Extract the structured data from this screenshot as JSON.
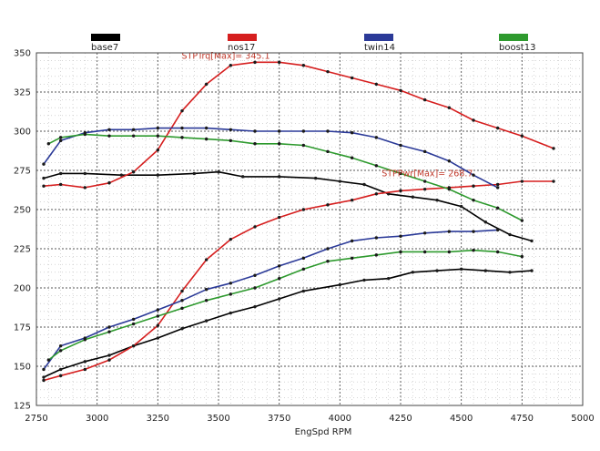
{
  "chart_data": {
    "type": "line",
    "title": "",
    "xlabel": "EngSpd RPM",
    "ylabel": "",
    "xlim": [
      2750,
      5000
    ],
    "ylim": [
      125,
      350
    ],
    "x_ticks": [
      "2750",
      "3000",
      "3250",
      "3500",
      "3750",
      "4000",
      "4250",
      "4500",
      "4750",
      "5000"
    ],
    "y_ticks": [
      "350",
      "325",
      "300",
      "275",
      "250",
      "225",
      "200",
      "175",
      "150",
      "125"
    ],
    "grid": true,
    "legend_position": "top",
    "legend": [
      {
        "name": "base7",
        "color": "#000000"
      },
      {
        "name": "nos17",
        "color": "#d61f1f"
      },
      {
        "name": "twin14",
        "color": "#2b3a98"
      },
      {
        "name": "boost13",
        "color": "#2e9a2e"
      }
    ],
    "series": [
      {
        "name": "base7",
        "color": "#000000",
        "kind": "torque",
        "x": [
          2780,
          2850,
          2950,
          3100,
          3250,
          3400,
          3500,
          3600,
          3750,
          3900,
          4000,
          4100,
          4200,
          4300,
          4400,
          4500,
          4600,
          4700,
          4790
        ],
        "y": [
          270,
          273,
          273,
          272,
          272,
          273,
          274,
          271,
          271,
          270,
          268,
          266,
          260,
          258,
          256,
          252,
          242,
          234,
          230
        ]
      },
      {
        "name": "base7",
        "color": "#000000",
        "kind": "power",
        "x": [
          2780,
          2850,
          2950,
          3050,
          3150,
          3250,
          3350,
          3450,
          3550,
          3650,
          3750,
          3850,
          4000,
          4100,
          4200,
          4300,
          4400,
          4500,
          4600,
          4700,
          4790
        ],
        "y": [
          143,
          148,
          153,
          157,
          163,
          168,
          174,
          179,
          184,
          188,
          193,
          198,
          202,
          205,
          206,
          210,
          211,
          212,
          211,
          210,
          211
        ]
      },
      {
        "name": "nos17",
        "color": "#d61f1f",
        "kind": "torque",
        "x": [
          2780,
          2850,
          2950,
          3050,
          3150,
          3250,
          3350,
          3450,
          3550,
          3650,
          3750,
          3850,
          3950,
          4050,
          4150,
          4250,
          4350,
          4450,
          4550,
          4650,
          4750,
          4880
        ],
        "y": [
          265,
          266,
          264,
          267,
          274,
          288,
          313,
          330,
          342,
          344,
          344,
          342,
          338,
          334,
          330,
          326,
          320,
          315,
          307,
          302,
          297,
          289
        ]
      },
      {
        "name": "nos17",
        "color": "#d61f1f",
        "kind": "power",
        "x": [
          2780,
          2850,
          2950,
          3050,
          3150,
          3250,
          3350,
          3450,
          3550,
          3650,
          3750,
          3850,
          3950,
          4050,
          4150,
          4250,
          4350,
          4450,
          4550,
          4650,
          4750,
          4880
        ],
        "y": [
          141,
          144,
          148,
          154,
          163,
          176,
          198,
          218,
          231,
          239,
          245,
          250,
          253,
          256,
          260,
          262,
          263,
          264,
          265,
          266,
          268,
          268
        ]
      },
      {
        "name": "twin14",
        "color": "#2b3a98",
        "kind": "torque",
        "x": [
          2780,
          2850,
          2950,
          3050,
          3150,
          3250,
          3350,
          3450,
          3550,
          3650,
          3750,
          3850,
          3950,
          4050,
          4150,
          4250,
          4350,
          4450,
          4550,
          4650
        ],
        "y": [
          279,
          294,
          299,
          301,
          301,
          302,
          302,
          302,
          301,
          300,
          300,
          300,
          300,
          299,
          296,
          291,
          287,
          281,
          272,
          264
        ]
      },
      {
        "name": "twin14",
        "color": "#2b3a98",
        "kind": "power",
        "x": [
          2780,
          2850,
          2950,
          3050,
          3150,
          3250,
          3350,
          3450,
          3550,
          3650,
          3750,
          3850,
          3950,
          4050,
          4150,
          4250,
          4350,
          4450,
          4550,
          4650
        ],
        "y": [
          148,
          163,
          168,
          175,
          180,
          186,
          192,
          199,
          203,
          208,
          214,
          219,
          225,
          230,
          232,
          233,
          235,
          236,
          236,
          237
        ]
      },
      {
        "name": "boost13",
        "color": "#2e9a2e",
        "kind": "torque",
        "x": [
          2800,
          2850,
          2950,
          3050,
          3150,
          3250,
          3350,
          3450,
          3550,
          3650,
          3750,
          3850,
          3950,
          4050,
          4150,
          4250,
          4350,
          4450,
          4550,
          4650,
          4750
        ],
        "y": [
          292,
          296,
          298,
          297,
          297,
          297,
          296,
          295,
          294,
          292,
          292,
          291,
          287,
          283,
          278,
          273,
          268,
          263,
          256,
          251,
          243
        ]
      },
      {
        "name": "boost13",
        "color": "#2e9a2e",
        "kind": "power",
        "x": [
          2800,
          2850,
          2950,
          3050,
          3150,
          3250,
          3350,
          3450,
          3550,
          3650,
          3750,
          3850,
          3950,
          4050,
          4150,
          4250,
          4350,
          4450,
          4550,
          4650,
          4750
        ],
        "y": [
          154,
          160,
          167,
          172,
          177,
          182,
          187,
          192,
          196,
          200,
          206,
          212,
          217,
          219,
          221,
          223,
          223,
          223,
          224,
          223,
          220
        ]
      }
    ],
    "annotations": [
      {
        "text": "STPTrq[Max]= 345.1",
        "x": 3530,
        "y": 344,
        "color": "#c0392b"
      },
      {
        "text": "STPPwr[Max]= 268.7",
        "x": 4360,
        "y": 269,
        "color": "#c0392b"
      }
    ]
  }
}
